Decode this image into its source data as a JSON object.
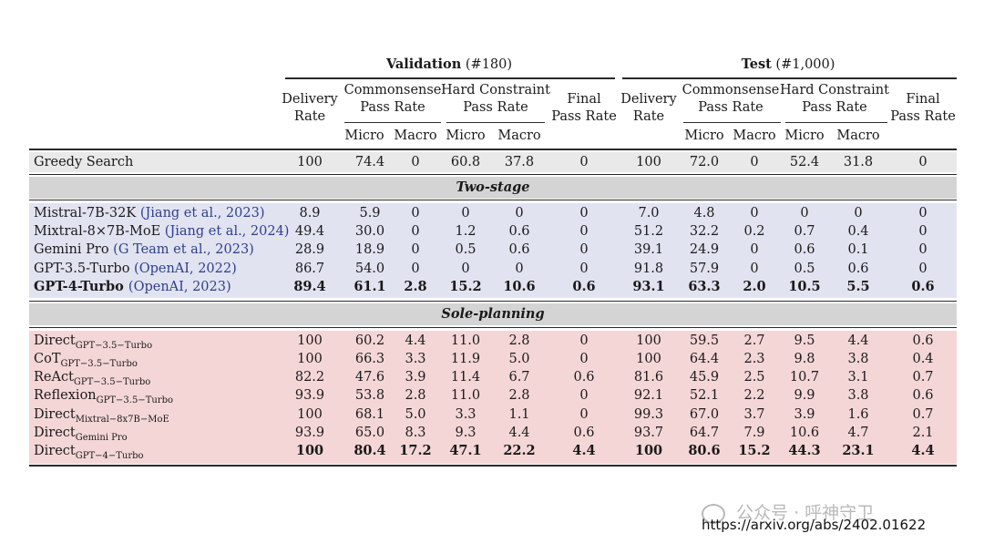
{
  "colors": {
    "greedy_band": "#e9e9e9",
    "section_band": "#d4d4d4",
    "two_stage_band": "#e2e3f1",
    "sole_band": "#f5d6d7",
    "citation": "#2b3f8f"
  },
  "groups": {
    "validation": {
      "name": "Validation",
      "count": "(#180)"
    },
    "test": {
      "name": "Test",
      "count": "(#1,000)"
    }
  },
  "columns": {
    "delivery": [
      "Delivery",
      "Rate"
    ],
    "commonsense": [
      "Commonsense",
      "Pass Rate"
    ],
    "hard": [
      "Hard Constraint",
      "Pass Rate"
    ],
    "final": [
      "Final",
      "Pass Rate"
    ],
    "micro": "Micro",
    "macro": "Macro"
  },
  "greedy": {
    "method": "Greedy Search",
    "values": [
      "100",
      "74.4",
      "0",
      "60.8",
      "37.8",
      "0",
      "100",
      "72.0",
      "0",
      "52.4",
      "31.8",
      "0"
    ]
  },
  "sections": {
    "two_stage": "Two-stage",
    "sole": "Sole-planning"
  },
  "two_stage_rows": [
    {
      "name": "Mistral-7B-32K ",
      "cite": "(Jiang et al., 2023)",
      "bold": false,
      "values": [
        "8.9",
        "5.9",
        "0",
        "0",
        "0",
        "0",
        "7.0",
        "4.8",
        "0",
        "0",
        "0",
        "0"
      ]
    },
    {
      "name": "Mixtral-8×7B-MoE ",
      "cite": "(Jiang et al., 2024)",
      "bold": false,
      "values": [
        "49.4",
        "30.0",
        "0",
        "1.2",
        "0.6",
        "0",
        "51.2",
        "32.2",
        "0.2",
        "0.7",
        "0.4",
        "0"
      ]
    },
    {
      "name": "Gemini Pro ",
      "cite": "(G Team et al., 2023)",
      "bold": false,
      "values": [
        "28.9",
        "18.9",
        "0",
        "0.5",
        "0.6",
        "0",
        "39.1",
        "24.9",
        "0",
        "0.6",
        "0.1",
        "0"
      ]
    },
    {
      "name": "GPT-3.5-Turbo ",
      "cite": "(OpenAI, 2022)",
      "bold": false,
      "values": [
        "86.7",
        "54.0",
        "0",
        "0",
        "0",
        "0",
        "91.8",
        "57.9",
        "0",
        "0.5",
        "0.6",
        "0"
      ]
    },
    {
      "name": "GPT-4-Turbo ",
      "cite": "(OpenAI, 2023)",
      "bold": true,
      "values": [
        "89.4",
        "61.1",
        "2.8",
        "15.2",
        "10.6",
        "0.6",
        "93.1",
        "63.3",
        "2.0",
        "10.5",
        "5.5",
        "0.6"
      ]
    }
  ],
  "sole_rows": [
    {
      "name": "Direct",
      "sub": "GPT−3.5−Turbo",
      "bold": false,
      "values": [
        "100",
        "60.2",
        "4.4",
        "11.0",
        "2.8",
        "0",
        "100",
        "59.5",
        "2.7",
        "9.5",
        "4.4",
        "0.6"
      ]
    },
    {
      "name": "CoT",
      "sub": "GPT−3.5−Turbo",
      "bold": false,
      "values": [
        "100",
        "66.3",
        "3.3",
        "11.9",
        "5.0",
        "0",
        "100",
        "64.4",
        "2.3",
        "9.8",
        "3.8",
        "0.4"
      ]
    },
    {
      "name": "ReAct",
      "sub": "GPT−3.5−Turbo",
      "bold": false,
      "values": [
        "82.2",
        "47.6",
        "3.9",
        "11.4",
        "6.7",
        "0.6",
        "81.6",
        "45.9",
        "2.5",
        "10.7",
        "3.1",
        "0.7"
      ]
    },
    {
      "name": "Reflexion",
      "sub": "GPT−3.5−Turbo",
      "bold": false,
      "values": [
        "93.9",
        "53.8",
        "2.8",
        "11.0",
        "2.8",
        "0",
        "92.1",
        "52.1",
        "2.2",
        "9.9",
        "3.8",
        "0.6"
      ]
    },
    {
      "name": "Direct",
      "sub": "Mixtral−8x7B−MoE",
      "bold": false,
      "values": [
        "100",
        "68.1",
        "5.0",
        "3.3",
        "1.1",
        "0",
        "99.3",
        "67.0",
        "3.7",
        "3.9",
        "1.6",
        "0.7"
      ]
    },
    {
      "name": "Direct",
      "sub": "Gemini Pro",
      "bold": false,
      "values": [
        "93.9",
        "65.0",
        "8.3",
        "9.3",
        "4.4",
        "0.6",
        "93.7",
        "64.7",
        "7.9",
        "10.6",
        "4.7",
        "2.1"
      ]
    },
    {
      "name": "Direct",
      "sub": "GPT−4−Turbo",
      "bold": true,
      "values": [
        "100",
        "80.4",
        "17.2",
        "47.1",
        "22.2",
        "4.4",
        "100",
        "80.6",
        "15.2",
        "44.3",
        "23.1",
        "4.4"
      ]
    }
  ],
  "watermark": {
    "account": "公众号 · 呼神守卫",
    "url": "https://arxiv.org/abs/2402.01622"
  }
}
